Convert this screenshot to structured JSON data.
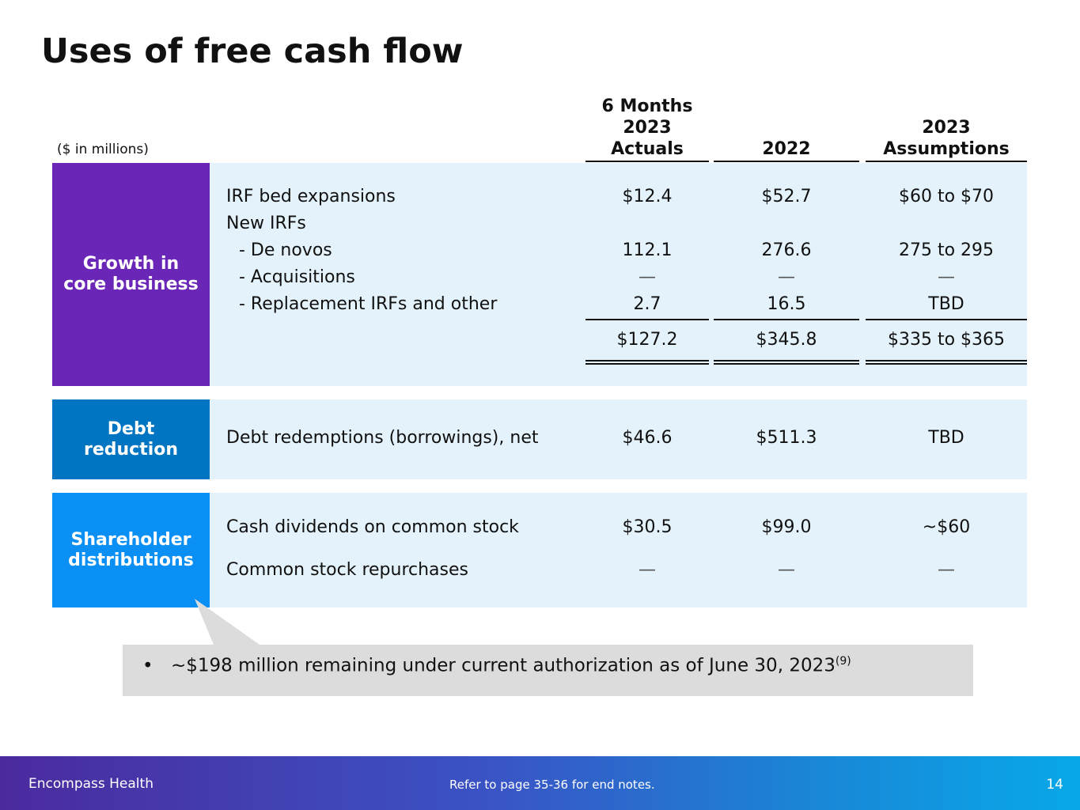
{
  "title": "Uses of free cash flow",
  "units_note": "($ in millions)",
  "columns": [
    {
      "lines": [
        "6 Months",
        "2023",
        "Actuals"
      ]
    },
    {
      "lines": [
        "2022"
      ]
    },
    {
      "lines": [
        "2023",
        "Assumptions"
      ]
    }
  ],
  "sections": {
    "growth": {
      "label": "Growth in\ncore business",
      "color": "#6a26b6",
      "rows": {
        "irf_bed": {
          "label": "IRF bed expansions",
          "values": [
            "$12.4",
            "$52.7",
            "$60 to $70"
          ]
        },
        "new_irfs": {
          "label": "New IRFs"
        },
        "de_novos": {
          "label": "- De novos",
          "values": [
            "112.1",
            "276.6",
            "275 to 295"
          ]
        },
        "acquisitions": {
          "label": "- Acquisitions",
          "values": [
            "—",
            "—",
            "—"
          ]
        },
        "replacement": {
          "label": "- Replacement IRFs and other",
          "values": [
            "2.7",
            "16.5",
            "TBD"
          ]
        }
      },
      "totals": [
        "$127.2",
        "$345.8",
        "$335 to $365"
      ]
    },
    "debt": {
      "label": "Debt\nreduction",
      "color": "#0275c2",
      "rows": {
        "debt_redemptions": {
          "label": "Debt redemptions (borrowings), net",
          "values": [
            "$46.6",
            "$511.3",
            "TBD"
          ]
        }
      }
    },
    "shareholder": {
      "label": "Shareholder\ndistributions",
      "color": "#0a8ff5",
      "rows": {
        "dividends": {
          "label": "Cash dividends on common stock",
          "values": [
            "$30.5",
            "$99.0",
            "~$60"
          ]
        },
        "repurchases": {
          "label": "Common stock repurchases",
          "values": [
            "—",
            "—",
            "—"
          ]
        }
      }
    }
  },
  "callout": {
    "bullet": "•",
    "text": "~$198 million remaining under current authorization as of June 30, 2023",
    "superscript": "(9)"
  },
  "footer": {
    "company": "Encompass Health",
    "note": "Refer to page 35-36 for end notes.",
    "page_number": "14"
  }
}
